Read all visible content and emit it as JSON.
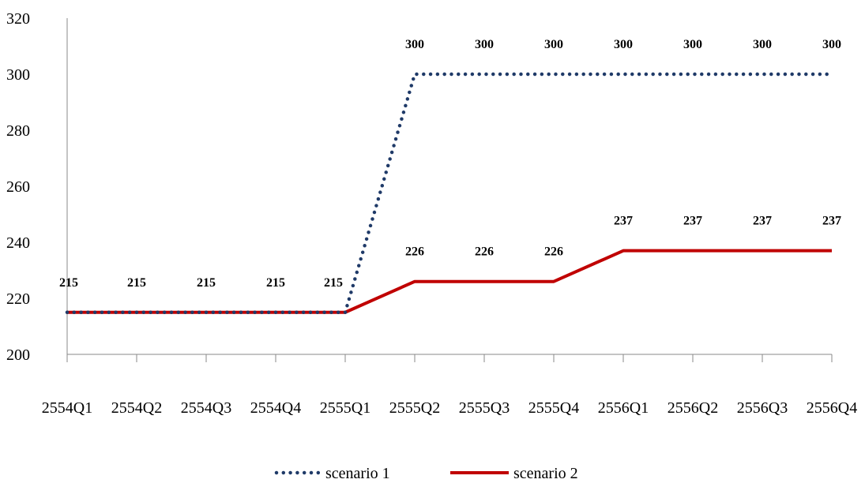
{
  "chart_data": {
    "type": "line",
    "title": "",
    "xlabel": "",
    "ylabel": "",
    "categories": [
      "2554Q1",
      "2554Q2",
      "2554Q3",
      "2554Q4",
      "2555Q1",
      "2555Q2",
      "2555Q3",
      "2555Q4",
      "2556Q1",
      "2556Q2",
      "2556Q3",
      "2556Q4"
    ],
    "ylim": [
      200,
      320
    ],
    "yticks": [
      200,
      220,
      240,
      260,
      280,
      300,
      320
    ],
    "grid": false,
    "legend_position": "bottom",
    "series": [
      {
        "name": "scenario 1",
        "style": "dotted",
        "color": "#1f3a68",
        "values": [
          215,
          215,
          215,
          215,
          215,
          300,
          300,
          300,
          300,
          300,
          300,
          300
        ],
        "labels": [
          "",
          "",
          "",
          "",
          "",
          "300",
          "300",
          "300",
          "300",
          "300",
          "300",
          "300"
        ]
      },
      {
        "name": "scenario 2",
        "style": "solid",
        "color": "#c00000",
        "values": [
          215,
          215,
          215,
          215,
          215,
          226,
          226,
          226,
          237,
          237,
          237,
          237
        ],
        "labels": [
          "215",
          "215",
          "215",
          "215",
          "215",
          "226",
          "226",
          "226",
          "237",
          "237",
          "237",
          "237"
        ]
      }
    ]
  }
}
